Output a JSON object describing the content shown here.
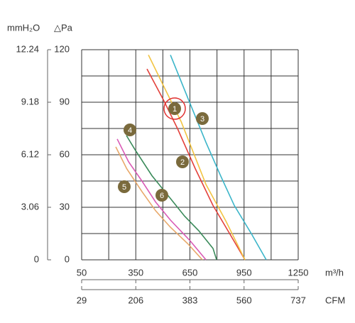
{
  "chart_data": {
    "type": "line",
    "y_label": "△Pa",
    "y2_label": "mmH₂O",
    "x_label": "m³/h",
    "x2_label": "CFM",
    "xlim": [
      50,
      1250
    ],
    "xticks": [
      50,
      350,
      650,
      950,
      1250
    ],
    "x2lim": [
      29,
      737
    ],
    "x2ticks": [
      29,
      206,
      383,
      560,
      737
    ],
    "ylim": [
      0,
      120
    ],
    "yticks": [
      0,
      30,
      60,
      90,
      120
    ],
    "y2lim": [
      0,
      12.24
    ],
    "y2ticks": [
      0,
      3.06,
      6.12,
      9.18,
      12.24
    ],
    "grid": true,
    "series": [
      {
        "name": "1",
        "color": "#e3413b",
        "x": [
          412,
          500,
          581,
          680,
          778,
          870,
          955
        ],
        "values": [
          109,
          92,
          75,
          52,
          31,
          15,
          0
        ]
      },
      {
        "name": "2",
        "color": "#f2c443",
        "x": [
          420,
          510,
          601,
          670,
          739,
          850,
          955
        ],
        "values": [
          117,
          98,
          79,
          61,
          43,
          22,
          0
        ]
      },
      {
        "name": "3",
        "color": "#3bb5c9",
        "x": [
          542,
          640,
          739,
          820,
          896,
          990,
          1073
        ],
        "values": [
          117,
          92,
          67,
          48,
          31,
          15,
          0
        ]
      },
      {
        "name": "4",
        "color": "#3a8a5a",
        "x": [
          298,
          345,
          440,
          542,
          620,
          699,
          778,
          798
        ],
        "values": [
          71,
          63,
          48,
          35,
          25,
          16.6,
          6.5,
          0
        ]
      },
      {
        "name": "5",
        "color": "#e8a86a",
        "x": [
          239,
          300,
          384,
          460,
          542,
          640,
          719
        ],
        "values": [
          64.5,
          52,
          39,
          28,
          18.6,
          9,
          0
        ]
      },
      {
        "name": "6",
        "color": "#d95ab5",
        "x": [
          247,
          310,
          384,
          460,
          542,
          650,
          739
        ],
        "values": [
          69,
          56,
          45,
          33,
          22.7,
          11,
          0
        ]
      }
    ]
  }
}
